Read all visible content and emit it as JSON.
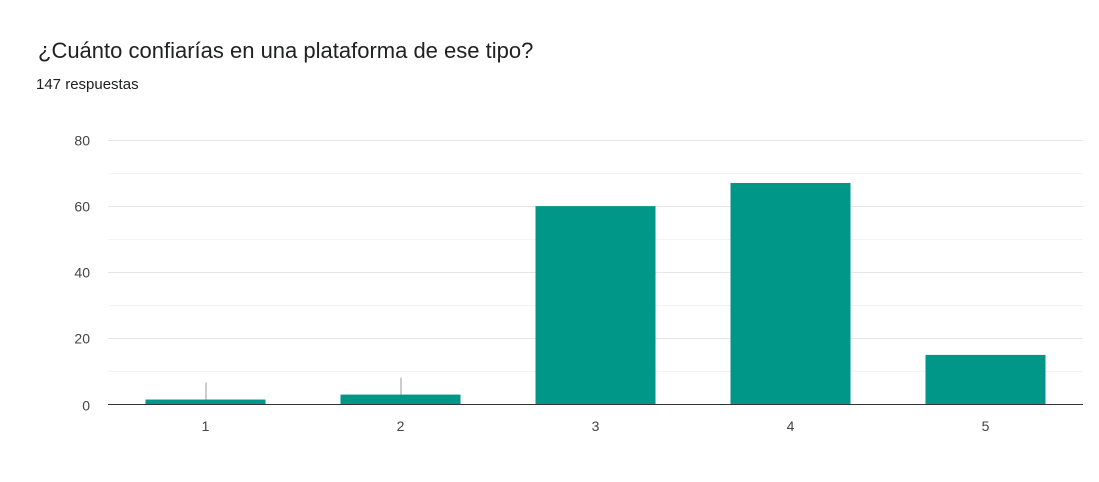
{
  "header": {
    "title": "¿Cuánto confiarías en una plataforma de ese tipo?",
    "response_count": "147 respuestas"
  },
  "colors": {
    "bar": "#009688",
    "grid_major": "#e6e6e6",
    "grid_minor": "#f3f3f3",
    "axis": "#333333",
    "error_bar": "#999999"
  },
  "chart_data": {
    "type": "bar",
    "title": "",
    "xlabel": "",
    "ylabel": "",
    "categories": [
      "1",
      "2",
      "3",
      "4",
      "5"
    ],
    "values": [
      1.5,
      3,
      60,
      67,
      15
    ],
    "ylim": [
      0,
      80
    ],
    "yticks": [
      0,
      20,
      40,
      60,
      80
    ],
    "grid": true,
    "legend": "none"
  }
}
